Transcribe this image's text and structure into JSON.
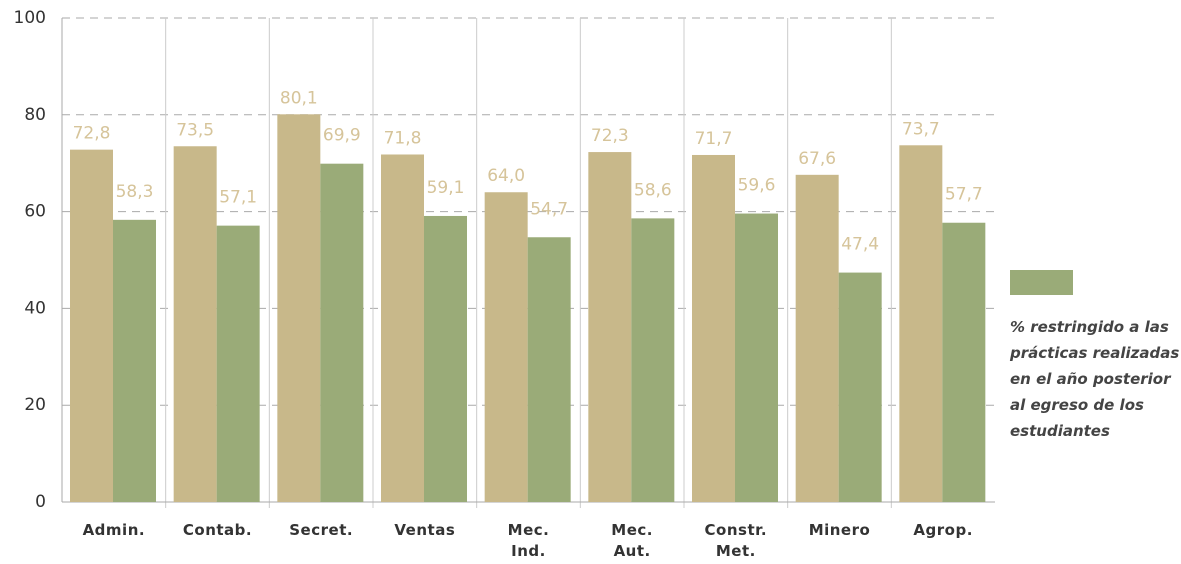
{
  "chart_data": {
    "type": "bar",
    "categories": [
      "Admin.",
      "Contab.",
      "Secret.",
      "Ventas",
      "Mec.\nInd.",
      "Mec.\nAut.",
      "Constr.\nMet.",
      "Minero",
      "Agrop."
    ],
    "series": [
      {
        "color": "#c8b88a",
        "values": [
          72.8,
          73.5,
          80.1,
          71.8,
          64.0,
          72.3,
          71.7,
          67.6,
          73.7
        ],
        "value_labels": [
          "72,8",
          "73,5",
          "80,1",
          "71,8",
          "64,0",
          "72,3",
          "71,7",
          "67,6",
          "73,7"
        ]
      },
      {
        "name": "% restringido a las prácticas realizadas en el año posterior al egreso de los estudiantes",
        "color": "#9aab78",
        "values": [
          58.3,
          57.1,
          69.9,
          59.1,
          54.7,
          58.6,
          59.6,
          47.4,
          57.7
        ],
        "value_labels": [
          "58,3",
          "57,1",
          "69,9",
          "59,1",
          "54,7",
          "58,6",
          "59,6",
          "47,4",
          "57,7"
        ]
      }
    ],
    "ylim": [
      0,
      100
    ],
    "yticks": [
      0,
      20,
      40,
      60,
      80,
      100
    ],
    "grid": true
  }
}
